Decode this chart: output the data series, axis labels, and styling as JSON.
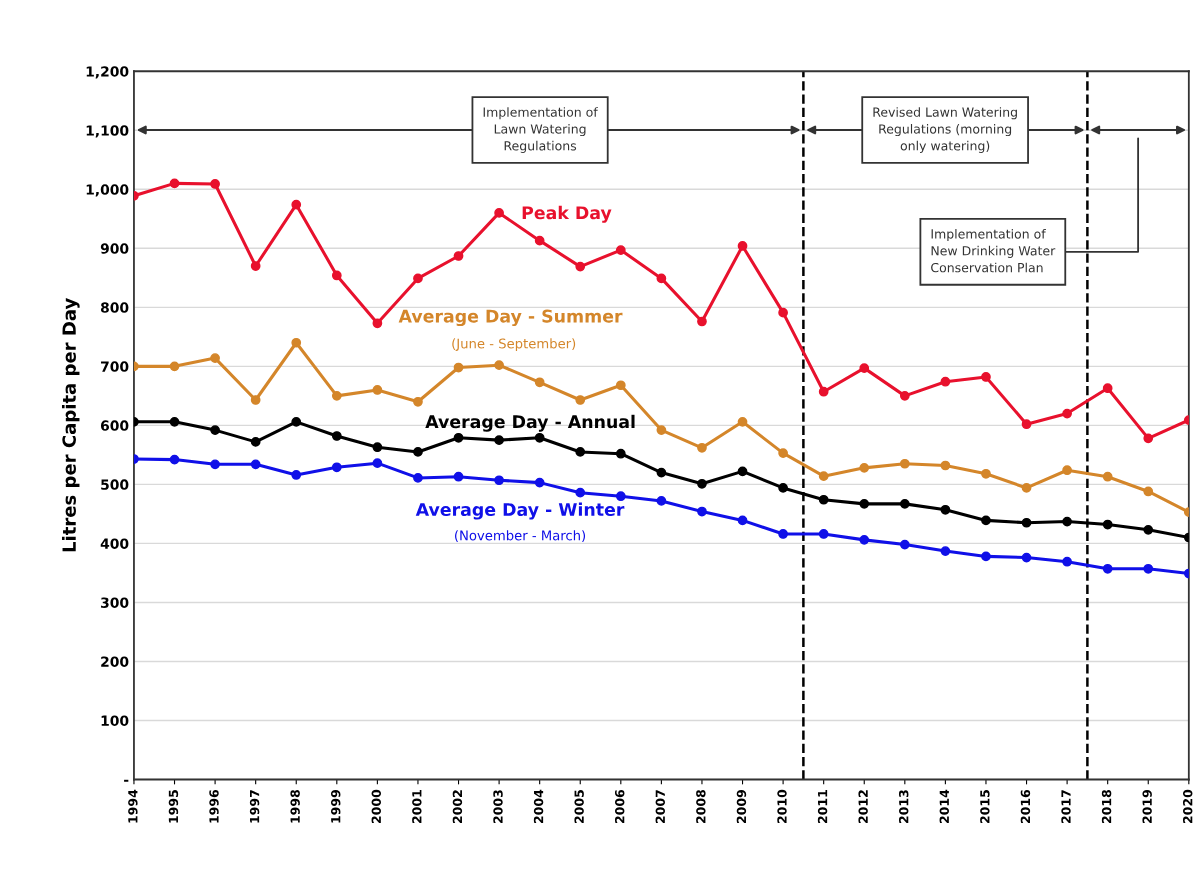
{
  "chart_data": {
    "type": "line",
    "ylabel": "Litres per Capita per Day",
    "x": [
      1994,
      1995,
      1996,
      1997,
      1998,
      1999,
      2000,
      2001,
      2002,
      2003,
      2004,
      2005,
      2006,
      2007,
      2008,
      2009,
      2010,
      2011,
      2012,
      2013,
      2014,
      2015,
      2016,
      2017,
      2018,
      2019,
      2020
    ],
    "xlim": [
      1994,
      2020
    ],
    "xticks": [
      1994,
      1995,
      1996,
      1997,
      1998,
      1999,
      2000,
      2001,
      2002,
      2003,
      2004,
      2005,
      2006,
      2007,
      2008,
      2009,
      2010,
      2011,
      2012,
      2013,
      2014,
      2015,
      2016,
      2017,
      2018,
      2019,
      2020
    ],
    "ylim": [
      0,
      1200
    ],
    "yticks": [
      {
        "value": 0,
        "label": "-"
      },
      100,
      200,
      300,
      400,
      500,
      600,
      700,
      800,
      900,
      {
        "value": 1000,
        "label": "1,000"
      },
      {
        "value": 1100,
        "label": "1,100"
      },
      {
        "value": 1200,
        "label": "1,200"
      }
    ],
    "grid": "y",
    "marker": "circle",
    "line_style": "solid",
    "series": [
      {
        "name": "Peak Day",
        "color": "#e8112d",
        "values": [
          989,
          1010,
          1009,
          870,
          974,
          854,
          773,
          849,
          887,
          960,
          913,
          869,
          897,
          849,
          776,
          904,
          791,
          657,
          697,
          650,
          674,
          682,
          602,
          620,
          663,
          578,
          609
        ]
      },
      {
        "name": "Average Day - Summer",
        "color": "#d4862a",
        "values": [
          700,
          700,
          714,
          643,
          740,
          650,
          660,
          640,
          698,
          702,
          673,
          643,
          668,
          592,
          562,
          606,
          553,
          514,
          528,
          535,
          532,
          518,
          494,
          524,
          513,
          488,
          453
        ]
      },
      {
        "name": "Average Day - Annual",
        "color": "#000000",
        "values": [
          606,
          606,
          592,
          572,
          606,
          582,
          563,
          555,
          579,
          575,
          579,
          555,
          552,
          520,
          501,
          522,
          494,
          474,
          467,
          467,
          457,
          439,
          435,
          437,
          432,
          423,
          410
        ]
      },
      {
        "name": "Average Day - Winter",
        "color": "#1010e8",
        "values": [
          543,
          542,
          534,
          534,
          516,
          529,
          536,
          511,
          513,
          507,
          503,
          486,
          480,
          472,
          454,
          439,
          416,
          416,
          406,
          398,
          387,
          378,
          376,
          369,
          357,
          357,
          349
        ]
      }
    ],
    "ref_lines": [
      {
        "axis": "x",
        "value": 2010.5,
        "line_style": "dashed",
        "color": "#000000"
      },
      {
        "axis": "x",
        "value": 2017.5,
        "line_style": "dashed",
        "color": "#000000"
      }
    ],
    "annotations": [
      "Implementation of\nLawn Watering\nRegulations",
      "Revised Lawn Watering\nRegulations (morning\nonly watering)",
      "Implementation of\nNew Drinking Water\nConservation Plan",
      "(June - September)",
      "(November - March)"
    ]
  }
}
